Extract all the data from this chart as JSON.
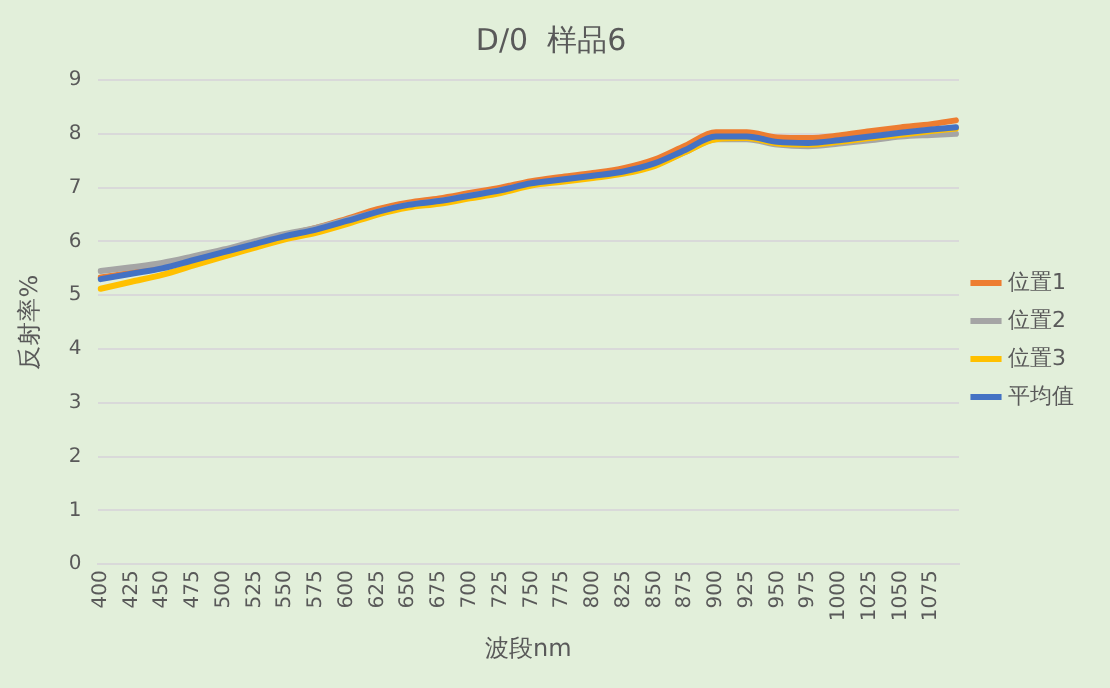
{
  "chart_data": {
    "type": "line",
    "title": "D/0  样品6",
    "xlabel": "波段nm",
    "ylabel": "反射率%",
    "x": [
      400,
      425,
      450,
      475,
      500,
      525,
      550,
      575,
      600,
      625,
      650,
      675,
      700,
      725,
      750,
      775,
      800,
      825,
      850,
      875,
      900,
      925,
      950,
      975,
      1000,
      1025,
      1050,
      1075,
      1095
    ],
    "xlim": [
      397.5,
      1097.5
    ],
    "xticks": [
      400,
      425,
      450,
      475,
      500,
      525,
      550,
      575,
      600,
      625,
      650,
      675,
      700,
      725,
      750,
      775,
      800,
      825,
      850,
      875,
      900,
      925,
      950,
      975,
      1000,
      1025,
      1050,
      1075
    ],
    "ylim": [
      0,
      9
    ],
    "yticks": [
      0,
      1,
      2,
      3,
      4,
      5,
      6,
      7,
      8,
      9
    ],
    "grid": "y",
    "legend": "right",
    "marker": "none",
    "line_style": "solid",
    "series": [
      {
        "name": "位置1",
        "color": "#ed7d31",
        "values": [
          5.33,
          5.42,
          5.52,
          5.67,
          5.82,
          5.97,
          6.12,
          6.25,
          6.42,
          6.6,
          6.72,
          6.8,
          6.9,
          7.0,
          7.12,
          7.2,
          7.27,
          7.36,
          7.52,
          7.78,
          8.03,
          8.03,
          7.93,
          7.92,
          7.97,
          8.05,
          8.12,
          8.18,
          8.25
        ]
      },
      {
        "name": "位置2",
        "color": "#a5a5a5",
        "values": [
          5.45,
          5.52,
          5.6,
          5.72,
          5.85,
          6.0,
          6.14,
          6.25,
          6.4,
          6.55,
          6.68,
          6.75,
          6.85,
          6.95,
          7.07,
          7.14,
          7.21,
          7.28,
          7.42,
          7.66,
          7.9,
          7.9,
          7.8,
          7.77,
          7.82,
          7.88,
          7.95,
          7.98,
          8.0
        ]
      },
      {
        "name": "位置3",
        "color": "#ffc000",
        "values": [
          5.12,
          5.25,
          5.38,
          5.55,
          5.72,
          5.88,
          6.04,
          6.16,
          6.32,
          6.5,
          6.63,
          6.7,
          6.8,
          6.9,
          7.04,
          7.11,
          7.18,
          7.26,
          7.4,
          7.66,
          7.9,
          7.92,
          7.82,
          7.8,
          7.85,
          7.92,
          7.98,
          8.05,
          8.1
        ]
      },
      {
        "name": "平均值",
        "color": "#4472c4",
        "values": [
          5.3,
          5.4,
          5.5,
          5.65,
          5.8,
          5.95,
          6.1,
          6.22,
          6.38,
          6.55,
          6.68,
          6.75,
          6.85,
          6.95,
          7.08,
          7.15,
          7.22,
          7.3,
          7.45,
          7.7,
          7.95,
          7.95,
          7.85,
          7.83,
          7.88,
          7.95,
          8.02,
          8.08,
          8.12
        ]
      }
    ]
  }
}
